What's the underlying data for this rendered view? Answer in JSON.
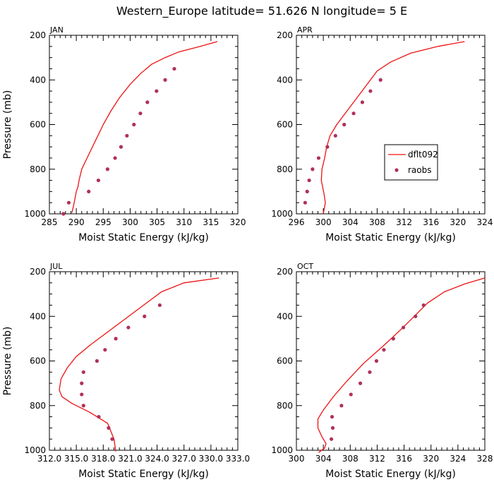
{
  "figure": {
    "title": "Western_Europe  latitude= 51.626 N longitude= 5 E"
  },
  "colors": {
    "model": "#ee1111",
    "obs": "#b0305a"
  },
  "chart_data": [
    {
      "type": "line",
      "panel": "JAN",
      "xlabel": "Moist Static Energy (kJ/kg)",
      "ylabel": "Pressure (mb)",
      "xlim": [
        285,
        320
      ],
      "ylim": [
        1000,
        200
      ],
      "xticks": [
        "285",
        "290",
        "295",
        "300",
        "305",
        "310",
        "315",
        "320"
      ],
      "yticks": [
        "200",
        "400",
        "600",
        "800",
        "1000"
      ],
      "series": [
        {
          "name": "dflt092",
          "style": "line",
          "x": [
            316.2,
            313,
            309,
            306.5,
            304,
            302,
            300,
            298,
            296.4,
            295,
            294,
            293,
            292,
            291,
            290.5,
            290.3,
            290,
            289.6,
            289.2
          ],
          "y": [
            228,
            250,
            275,
            300,
            330,
            370,
            420,
            480,
            540,
            600,
            650,
            700,
            750,
            800,
            850,
            880,
            900,
            950,
            995
          ]
        },
        {
          "name": "raobs",
          "style": "markers",
          "x": [
            287.6,
            288.6,
            292.3,
            294.1,
            295.8,
            297.2,
            298.3,
            299.4,
            300.7,
            301.9,
            303.2,
            304.9,
            306.5,
            308.2
          ],
          "y": [
            1000,
            950,
            900,
            850,
            800,
            750,
            700,
            650,
            600,
            550,
            500,
            450,
            400,
            350
          ]
        }
      ]
    },
    {
      "type": "line",
      "panel": "APR",
      "xlabel": "Moist Static Energy (kJ/kg)",
      "ylabel": "",
      "xlim": [
        296,
        324
      ],
      "ylim": [
        1000,
        200
      ],
      "xticks": [
        "296",
        "300",
        "304",
        "308",
        "312",
        "316",
        "320",
        "324"
      ],
      "yticks": [
        "200",
        "400",
        "600",
        "800",
        "1000"
      ],
      "legend": {
        "position": "right",
        "entries": [
          "dflt092",
          "raobs"
        ]
      },
      "series": [
        {
          "name": "dflt092",
          "style": "line",
          "x": [
            321,
            317,
            313,
            310,
            308,
            306.5,
            305,
            303.5,
            302,
            301,
            300.5,
            300.2,
            299.8,
            299.7,
            299.9,
            300.1,
            300.3,
            300.0
          ],
          "y": [
            228,
            250,
            280,
            320,
            360,
            420,
            480,
            540,
            600,
            650,
            700,
            750,
            800,
            850,
            880,
            910,
            950,
            1000
          ]
        },
        {
          "name": "raobs",
          "style": "markers",
          "x": [
            297.3,
            297.6,
            297.9,
            298.4,
            299.3,
            300.6,
            301.8,
            303.1,
            304.5,
            305.8,
            307.0,
            308.5
          ],
          "y": [
            950,
            900,
            850,
            800,
            750,
            700,
            650,
            600,
            550,
            500,
            450,
            400
          ]
        }
      ]
    },
    {
      "type": "line",
      "panel": "JUL",
      "xlabel": "Moist Static Energy (kJ/kg)",
      "ylabel": "Pressure (mb)",
      "xlim": [
        312,
        333
      ],
      "ylim": [
        1000,
        200
      ],
      "xticks": [
        "312.0",
        "315.0",
        "318.0",
        "321.0",
        "324.0",
        "327.0",
        "330.0",
        "333.0"
      ],
      "yticks": [
        "200",
        "400",
        "600",
        "800",
        "1000"
      ],
      "series": [
        {
          "name": "dflt092",
          "style": "line",
          "x": [
            330.9,
            327,
            324.5,
            322.5,
            320.5,
            318.5,
            316.5,
            315,
            314,
            313.3,
            313.1,
            313.4,
            314.5,
            316.5,
            318.5,
            319.2,
            319.4
          ],
          "y": [
            228,
            250,
            290,
            350,
            410,
            470,
            530,
            580,
            630,
            680,
            730,
            760,
            790,
            830,
            880,
            950,
            1005
          ]
        },
        {
          "name": "raobs",
          "style": "markers",
          "x": [
            319.0,
            318.6,
            317.5,
            315.8,
            315.6,
            315.6,
            315.8,
            317.3,
            318.2,
            319.4,
            320.8,
            322.6,
            324.3
          ],
          "y": [
            950,
            900,
            850,
            800,
            750,
            700,
            650,
            600,
            550,
            500,
            450,
            400,
            350
          ]
        }
      ]
    },
    {
      "type": "line",
      "panel": "OCT",
      "xlabel": "Moist Static Energy (kJ/kg)",
      "ylabel": "",
      "xlim": [
        300,
        328
      ],
      "ylim": [
        1000,
        200
      ],
      "xticks": [
        "300",
        "304",
        "308",
        "312",
        "316",
        "320",
        "324",
        "328"
      ],
      "yticks": [
        "200",
        "400",
        "600",
        "800",
        "1000"
      ],
      "series": [
        {
          "name": "dflt092",
          "style": "line",
          "x": [
            328,
            325,
            322,
            319.5,
            317.5,
            315.5,
            313,
            310,
            307.5,
            305.5,
            304,
            303.2,
            303.2,
            303.8,
            304.4,
            304.2,
            303.3
          ],
          "y": [
            228,
            255,
            290,
            340,
            400,
            460,
            530,
            610,
            690,
            760,
            820,
            860,
            900,
            940,
            970,
            990,
            1010
          ]
        },
        {
          "name": "raobs",
          "style": "markers",
          "x": [
            305.2,
            305.4,
            305.3,
            306.7,
            308.1,
            309.5,
            310.9,
            311.9,
            313.0,
            314.4,
            315.9,
            317.7,
            318.9
          ],
          "y": [
            950,
            900,
            850,
            800,
            750,
            700,
            650,
            600,
            550,
            500,
            450,
            400,
            350
          ]
        }
      ]
    }
  ]
}
